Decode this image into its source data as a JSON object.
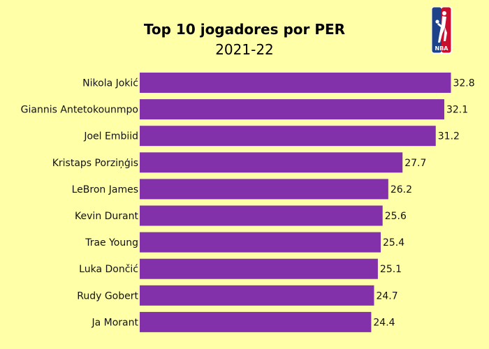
{
  "chart_data": {
    "type": "bar",
    "orientation": "horizontal",
    "title": "Top 10 jogadores por PER",
    "subtitle": "2021-22",
    "categories": [
      "Nikola Jokić",
      "Giannis Antetokounmpo",
      "Joel Embiid",
      "Kristaps Porziņģis",
      "LeBron James",
      "Kevin Durant",
      "Trae Young",
      "Luka Dončić",
      "Rudy Gobert",
      "Ja Morant"
    ],
    "values": [
      32.8,
      32.1,
      31.2,
      27.7,
      26.2,
      25.6,
      25.4,
      25.1,
      24.7,
      24.4
    ],
    "xlim": [
      0,
      33.5
    ],
    "grid": false,
    "legend": "none",
    "colors": {
      "bar": "#8231AA",
      "background": "#FFFFA8"
    }
  },
  "logo": {
    "text": "NBA",
    "colors": [
      "#1D428A",
      "#C8102E",
      "#FFFFFF"
    ]
  }
}
